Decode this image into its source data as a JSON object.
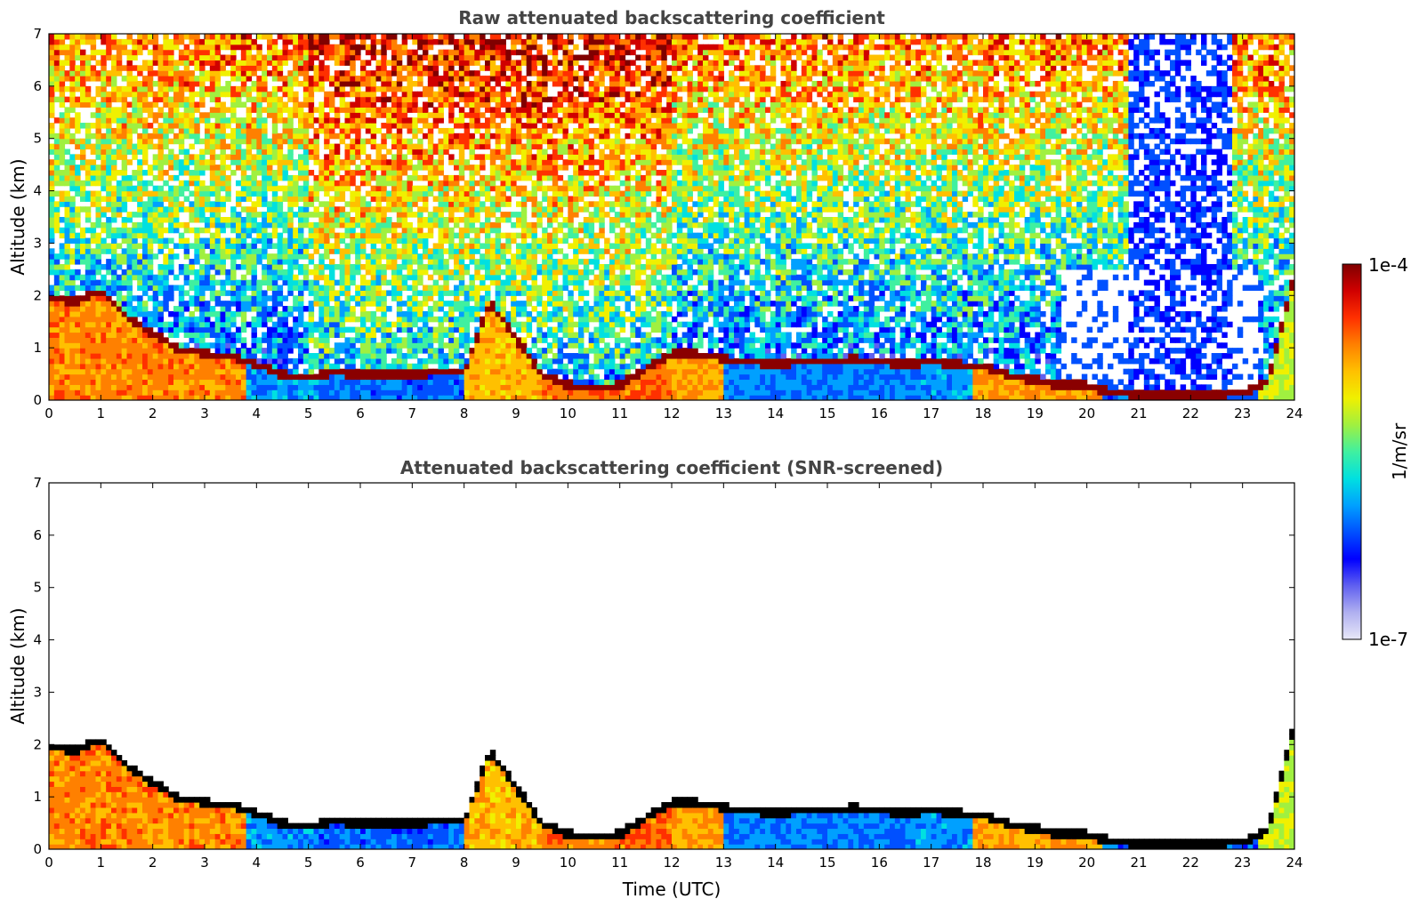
{
  "chart_data": [
    {
      "type": "heatmap",
      "title": "Raw attenuated backscattering coefficient",
      "xlabel": "",
      "ylabel": "Altitude (km)",
      "xlim": [
        0,
        24
      ],
      "ylim": [
        0,
        7
      ],
      "xticks": [
        "0",
        "1",
        "2",
        "3",
        "4",
        "5",
        "6",
        "7",
        "8",
        "9",
        "10",
        "11",
        "12",
        "13",
        "14",
        "15",
        "16",
        "17",
        "18",
        "19",
        "20",
        "21",
        "22",
        "23",
        "24"
      ],
      "yticks": [
        "0",
        "1",
        "2",
        "3",
        "4",
        "5",
        "6",
        "7"
      ],
      "screened": false,
      "boundary_layer_top_km": {
        "x": [
          0,
          0.5,
          1,
          1.5,
          2,
          2.5,
          3,
          3.5,
          4,
          4.5,
          5,
          5.5,
          6,
          6.5,
          7,
          7.5,
          8,
          8.5,
          9,
          9.5,
          10,
          10.5,
          11,
          11.5,
          12,
          12.5,
          13,
          13.5,
          14,
          14.5,
          15,
          15.5,
          16,
          16.5,
          17,
          17.5,
          18,
          18.5,
          19,
          19.5,
          20,
          20.5,
          21,
          21.5,
          22,
          22.5,
          23,
          23.5,
          24
        ],
        "y": [
          2.0,
          1.9,
          2.1,
          1.6,
          1.3,
          1.0,
          0.9,
          0.85,
          0.7,
          0.5,
          0.45,
          0.55,
          0.5,
          0.5,
          0.5,
          0.55,
          0.55,
          1.9,
          1.2,
          0.5,
          0.3,
          0.25,
          0.3,
          0.6,
          0.9,
          0.9,
          0.8,
          0.75,
          0.7,
          0.75,
          0.75,
          0.8,
          0.75,
          0.7,
          0.75,
          0.7,
          0.65,
          0.5,
          0.4,
          0.3,
          0.3,
          0.15,
          0.12,
          0.1,
          0.1,
          0.12,
          0.15,
          0.4,
          2.4
        ]
      }
    },
    {
      "type": "heatmap",
      "title": "Attenuated backscattering coefficient (SNR-screened)",
      "xlabel": "Time (UTC)",
      "ylabel": "Altitude (km)",
      "xlim": [
        0,
        24
      ],
      "ylim": [
        0,
        7
      ],
      "xticks": [
        "0",
        "1",
        "2",
        "3",
        "4",
        "5",
        "6",
        "7",
        "8",
        "9",
        "10",
        "11",
        "12",
        "13",
        "14",
        "15",
        "16",
        "17",
        "18",
        "19",
        "20",
        "21",
        "22",
        "23",
        "24"
      ],
      "yticks": [
        "0",
        "1",
        "2",
        "3",
        "4",
        "5",
        "6",
        "7"
      ],
      "screened": true
    }
  ],
  "colorbar": {
    "label": "1/m/sr",
    "max_label": "1e-4",
    "min_label": "1e-7",
    "scale": "log",
    "range": [
      1e-07,
      0.0001
    ],
    "colormap": [
      "#e8e8f8",
      "#b0b0f0",
      "#6060f0",
      "#0000ff",
      "#0050ff",
      "#00a0ff",
      "#00e0e0",
      "#40f0a0",
      "#a0f040",
      "#f0f000",
      "#ffc000",
      "#ff8000",
      "#ff3000",
      "#d00000",
      "#800000"
    ]
  }
}
